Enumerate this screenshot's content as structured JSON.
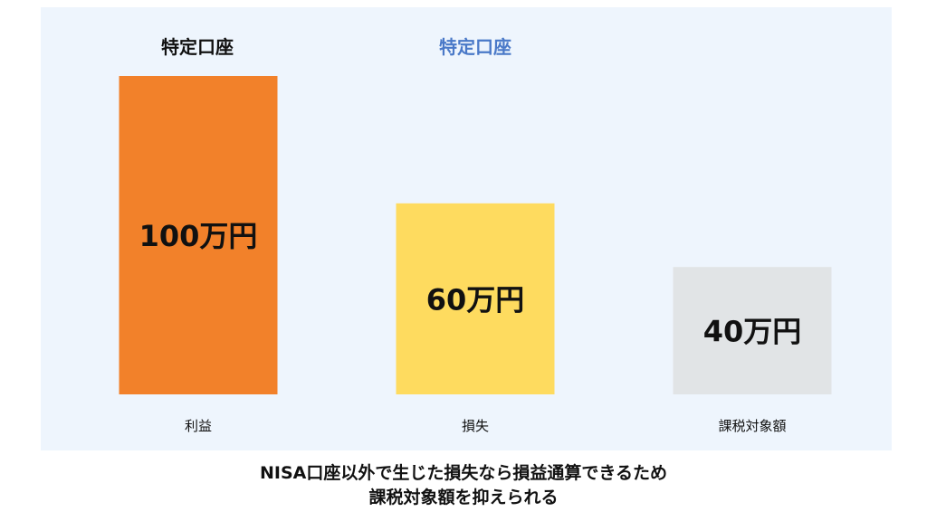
{
  "header": {
    "label_left": "特定口座",
    "label_right": "特定口座",
    "label_left_color": "#111111",
    "label_right_color": "#4a79c8"
  },
  "chart_data": {
    "type": "bar",
    "title": "",
    "xlabel": "",
    "ylabel": "",
    "categories": [
      "利益",
      "損失",
      "課税対象額"
    ],
    "values": [
      100,
      60,
      40
    ],
    "value_labels": [
      "100万円",
      "60万円",
      "40万円"
    ],
    "unit": "万円",
    "colors": [
      "#f2812a",
      "#fedb5f",
      "#e1e4e6"
    ],
    "ylim": [
      0,
      100
    ],
    "grid": false
  },
  "caption": {
    "line1": "NISA口座以外で生じた損失なら損益通算できるため",
    "line2": "課税対象額を抑えられる"
  },
  "colors": {
    "panel_background": "#eef5fd",
    "text": "#111111"
  }
}
